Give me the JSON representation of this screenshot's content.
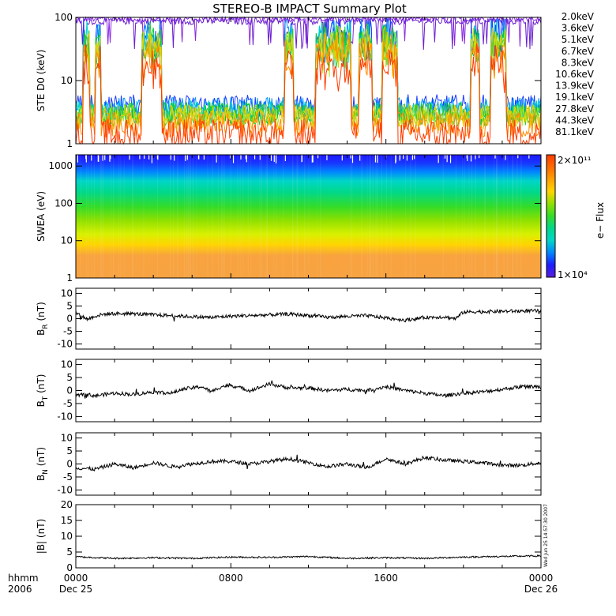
{
  "chart_data": {
    "title": "STEREO-B IMPACT Summary Plot",
    "time_axis": {
      "row1_label": "hhmm",
      "row2_label": "2006",
      "ticks": [
        {
          "hour": 0,
          "time": "0000",
          "date": "Dec 25"
        },
        {
          "hour": 8,
          "time": "0800",
          "date": ""
        },
        {
          "hour": 16,
          "time": "1600",
          "date": ""
        },
        {
          "hour": 24,
          "time": "0000",
          "date": "Dec 26"
        }
      ],
      "range_hours": [
        0,
        24
      ]
    },
    "timestamp_text": "Wed Jun 25 14:57:30 2007",
    "panels": [
      {
        "id": "ste",
        "type": "line",
        "ylabel": "STE D0 (keV)",
        "yscale": "log",
        "ylim": [
          1,
          100
        ],
        "yticks": [
          "1",
          "10",
          "100"
        ],
        "series": [
          {
            "name": "2.0keV",
            "color": "#8a2be2",
            "level": 95,
            "variability": 0.05
          },
          {
            "name": "3.6keV",
            "color": "#6a1fd0",
            "level": 88,
            "variability": 0.06
          },
          {
            "name": "5.1keV",
            "color": "#1e3cff",
            "level": 4.0,
            "variability": 0.18
          },
          {
            "name": "6.7keV",
            "color": "#0096ff",
            "level": 3.6,
            "variability": 0.18
          },
          {
            "name": "8.3keV",
            "color": "#00d2c8",
            "level": 3.2,
            "variability": 0.18
          },
          {
            "name": "10.6keV",
            "color": "#00c832",
            "level": 3.0,
            "variability": 0.18
          },
          {
            "name": "13.9keV",
            "color": "#32cd32",
            "level": 2.9,
            "variability": 0.18
          },
          {
            "name": "19.1keV",
            "color": "#b4e61e",
            "level": 2.8,
            "variability": 0.18
          },
          {
            "name": "27.8keV",
            "color": "#f0c800",
            "level": 2.6,
            "variability": 0.2
          },
          {
            "name": "44.3keV",
            "color": "#ff8c00",
            "level": 2.0,
            "variability": 0.2
          },
          {
            "name": "81.1keV",
            "color": "#ff3c00",
            "level": 1.4,
            "variability": 0.25
          }
        ],
        "enhancement_intervals_hours": [
          [
            0.4,
            0.7
          ],
          [
            1.0,
            1.3
          ],
          [
            3.4,
            4.4
          ],
          [
            10.8,
            11.2
          ],
          [
            12.4,
            14.2
          ],
          [
            14.6,
            15.3
          ],
          [
            15.8,
            16.6
          ],
          [
            20.4,
            20.8
          ],
          [
            21.4,
            22.2
          ]
        ]
      },
      {
        "id": "swea",
        "type": "heatmap",
        "ylabel": "SWEA (eV)",
        "yscale": "log",
        "ylim": [
          1,
          2000
        ],
        "yticks": [
          "1",
          "10",
          "100",
          "1000"
        ],
        "colorbar": {
          "label": "e− Flux",
          "min_label": "1×10⁴",
          "max_label": "2×10¹¹",
          "scale": "log",
          "range": [
            10000,
            200000000000
          ]
        },
        "energy_band_colors": [
          {
            "energy_ev": 1.5,
            "color": "#f7a341"
          },
          {
            "energy_ev": 4,
            "color": "#f8a33f"
          },
          {
            "energy_ev": 8,
            "color": "#ffd500"
          },
          {
            "energy_ev": 15,
            "color": "#d8f000"
          },
          {
            "energy_ev": 35,
            "color": "#8fe000"
          },
          {
            "energy_ev": 80,
            "color": "#35dc27"
          },
          {
            "energy_ev": 200,
            "color": "#00d88a"
          },
          {
            "energy_ev": 400,
            "color": "#00d6c8"
          },
          {
            "energy_ev": 700,
            "color": "#0086ff"
          },
          {
            "energy_ev": 1200,
            "color": "#1836ff"
          },
          {
            "energy_ev": 1800,
            "color": "#1d1dff"
          }
        ]
      },
      {
        "id": "br",
        "type": "line",
        "ylabel": "B_R (nT)",
        "ylabel_main": "B",
        "ylabel_sub": "R",
        "ylabel_unit": "(nT)",
        "ylim": [
          -12,
          12
        ],
        "yticks": [
          "-10",
          "-5",
          "0",
          "5",
          "10"
        ],
        "ytick_values": [
          -10,
          -5,
          0,
          5,
          10
        ],
        "series": [
          {
            "name": "B_R",
            "x_hours": [
              0,
              0.3,
              0.6,
              1.0,
              1.5,
              2.0,
              3.0,
              4.0,
              5.0,
              6.0,
              7.0,
              8.0,
              9.0,
              10.0,
              11.0,
              12.0,
              13.0,
              14.0,
              15.0,
              16.0,
              17.0,
              18.0,
              19.0,
              19.6,
              20.0,
              21.0,
              22.0,
              23.0,
              24.0
            ],
            "values": [
              2.5,
              1.0,
              -0.2,
              1.0,
              1.8,
              2.0,
              1.9,
              1.5,
              1.2,
              0.8,
              0.5,
              1.0,
              1.2,
              1.5,
              1.8,
              1.3,
              0.5,
              0.9,
              1.2,
              0.3,
              -0.6,
              0.5,
              0.7,
              0.0,
              2.6,
              2.8,
              2.9,
              3.0,
              3.1
            ]
          }
        ]
      },
      {
        "id": "bt",
        "type": "line",
        "ylabel": "B_T (nT)",
        "ylabel_main": "B",
        "ylabel_sub": "T",
        "ylabel_unit": "(nT)",
        "ylim": [
          -12,
          12
        ],
        "yticks": [
          "-10",
          "-5",
          "0",
          "5",
          "10"
        ],
        "ytick_values": [
          -10,
          -5,
          0,
          5,
          10
        ],
        "series": [
          {
            "name": "B_T",
            "x_hours": [
              0,
              0.5,
              1.0,
              2.0,
              3.0,
              4.0,
              5.0,
              5.5,
              6.5,
              7.0,
              7.5,
              8.0,
              9.0,
              10.0,
              11.0,
              12.0,
              13.0,
              14.0,
              15.0,
              16.0,
              17.0,
              18.0,
              19.0,
              20.0,
              21.0,
              22.0,
              23.0,
              24.0
            ],
            "values": [
              -2.0,
              -1.5,
              -2.0,
              -1.0,
              -1.5,
              -0.5,
              -1.0,
              0.5,
              1.5,
              -0.5,
              1.5,
              2.0,
              0.0,
              2.5,
              1.0,
              1.0,
              0.0,
              0.5,
              0.0,
              1.5,
              0.0,
              -1.0,
              -2.0,
              -1.0,
              -0.5,
              0.5,
              1.5,
              1.5
            ]
          }
        ]
      },
      {
        "id": "bn",
        "type": "line",
        "ylabel": "B_N (nT)",
        "ylabel_main": "B",
        "ylabel_sub": "N",
        "ylabel_unit": "(nT)",
        "ylim": [
          -12,
          12
        ],
        "yticks": [
          "-10",
          "-5",
          "0",
          "5",
          "10"
        ],
        "ytick_values": [
          -10,
          -5,
          0,
          5,
          10
        ],
        "series": [
          {
            "name": "B_N",
            "x_hours": [
              0,
              1.0,
              2.0,
              3.0,
              4.0,
              5.0,
              6.0,
              7.0,
              8.0,
              9.0,
              10.0,
              11.0,
              12.0,
              13.0,
              14.0,
              15.0,
              16.0,
              17.0,
              18.0,
              19.0,
              20.0,
              21.0,
              22.0,
              23.0,
              24.0
            ],
            "values": [
              -1.5,
              -2.0,
              0.0,
              -1.5,
              0.5,
              -1.0,
              0.0,
              1.0,
              1.0,
              0.0,
              1.0,
              2.0,
              0.5,
              -1.0,
              0.0,
              -1.5,
              2.0,
              0.0,
              2.5,
              1.5,
              1.0,
              0.5,
              -0.5,
              -0.5,
              0.5
            ]
          }
        ]
      },
      {
        "id": "btot",
        "type": "line",
        "ylabel": "|B| (nT)",
        "ylim": [
          0,
          20
        ],
        "yticks": [
          "0",
          "5",
          "10",
          "15",
          "20"
        ],
        "ytick_values": [
          0,
          5,
          10,
          15,
          20
        ],
        "series": [
          {
            "name": "|B|",
            "x_hours": [
              0,
              2.0,
              4.0,
              6.0,
              8.0,
              10.0,
              12.0,
              14.0,
              16.0,
              18.0,
              20.0,
              22.0,
              24.0
            ],
            "values": [
              3.5,
              3.0,
              3.2,
              3.0,
              3.4,
              3.3,
              3.6,
              3.0,
              3.2,
              3.0,
              3.4,
              3.6,
              3.8
            ]
          }
        ]
      }
    ]
  }
}
